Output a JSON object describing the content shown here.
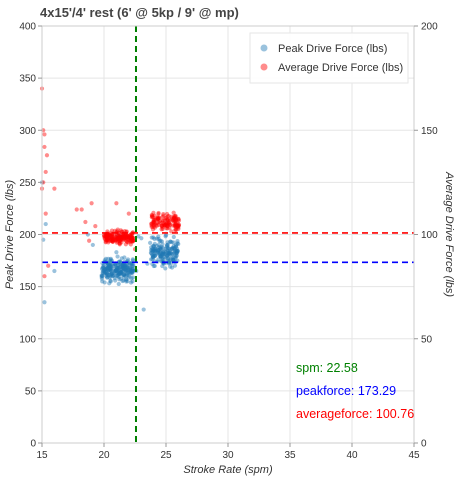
{
  "chart_data": {
    "type": "scatter",
    "title": "4x15'/4' rest (6' @ 5kp / 9' @ mp)",
    "xlabel": "Stroke Rate (spm)",
    "ylabel": "Peak Drive Force (lbs)",
    "y2label": "Average Drive Force (lbs)",
    "xlim": [
      15,
      45
    ],
    "ylim": [
      0,
      400
    ],
    "y2lim": [
      0,
      200
    ],
    "xticks": [
      15,
      20,
      25,
      30,
      35,
      40,
      45
    ],
    "yticks": [
      0,
      50,
      100,
      150,
      200,
      250,
      300,
      350,
      400
    ],
    "y2ticks": [
      0,
      50,
      100,
      150,
      200
    ],
    "grid": true,
    "legend_position": "top-right",
    "series": [
      {
        "name": "Peak Drive Force (lbs)",
        "axis": "left",
        "color": "#1f77b4",
        "clusters": [
          {
            "x_range": [
              19.8,
              22.4
            ],
            "y_range": [
              150,
              182
            ],
            "count": 230
          },
          {
            "x_range": [
              23.7,
              26.0
            ],
            "y_range": [
              165,
              200
            ],
            "count": 170
          },
          {
            "x_range": [
              20.2,
              26.0
            ],
            "y_range": [
              195,
              200
            ],
            "count": 16
          }
        ],
        "points": [
          [
            15.0,
            250
          ],
          [
            15.1,
            195
          ],
          [
            15.2,
            135
          ],
          [
            15.3,
            210
          ],
          [
            16.0,
            165
          ],
          [
            21.0,
            183
          ],
          [
            22.6,
            165
          ],
          [
            23.2,
            128
          ],
          [
            23.5,
            172
          ],
          [
            22.3,
            155
          ],
          [
            18.7,
            200
          ],
          [
            19.1,
            190
          ]
        ]
      },
      {
        "name": "Average Drive Force (lbs)",
        "axis": "right",
        "color": "#ff0000",
        "clusters": [
          {
            "x_range": [
              20.0,
              22.4
            ],
            "y_range": [
              94,
              103
            ],
            "count": 170
          },
          {
            "x_range": [
              23.8,
              26.1
            ],
            "y_range": [
              99,
              112
            ],
            "count": 130
          }
        ],
        "points": [
          [
            15.0,
            170
          ],
          [
            15.1,
            150
          ],
          [
            15.2,
            148
          ],
          [
            15.2,
            142
          ],
          [
            15.3,
            130
          ],
          [
            15.4,
            138
          ],
          [
            15.1,
            125
          ],
          [
            15.0,
            122
          ],
          [
            15.3,
            110
          ],
          [
            15.5,
            85
          ],
          [
            15.2,
            80
          ],
          [
            16.0,
            122
          ],
          [
            17.8,
            112
          ],
          [
            18.2,
            112
          ],
          [
            18.5,
            106
          ],
          [
            19.0,
            115
          ],
          [
            19.3,
            104
          ],
          [
            18.8,
            97
          ],
          [
            21.0,
            115
          ],
          [
            22.0,
            110
          ],
          [
            22.5,
            93
          ]
        ]
      }
    ],
    "reference_lines": [
      {
        "orientation": "vertical",
        "value": 22.58,
        "color": "#008000",
        "label": "spm"
      },
      {
        "orientation": "horizontal",
        "axis": "left",
        "value": 173.29,
        "color": "#0000ff",
        "label": "peakforce"
      },
      {
        "orientation": "horizontal",
        "axis": "right",
        "value": 100.76,
        "color": "#ff0000",
        "label": "averageforce"
      }
    ],
    "annotations": [
      {
        "label": "spm:",
        "value": "22.58",
        "color": "#008000"
      },
      {
        "label": "peakforce:",
        "value": "173.29",
        "color": "#0000ff"
      },
      {
        "label": "averageforce:",
        "value": "100.76",
        "color": "#ff0000"
      }
    ]
  }
}
